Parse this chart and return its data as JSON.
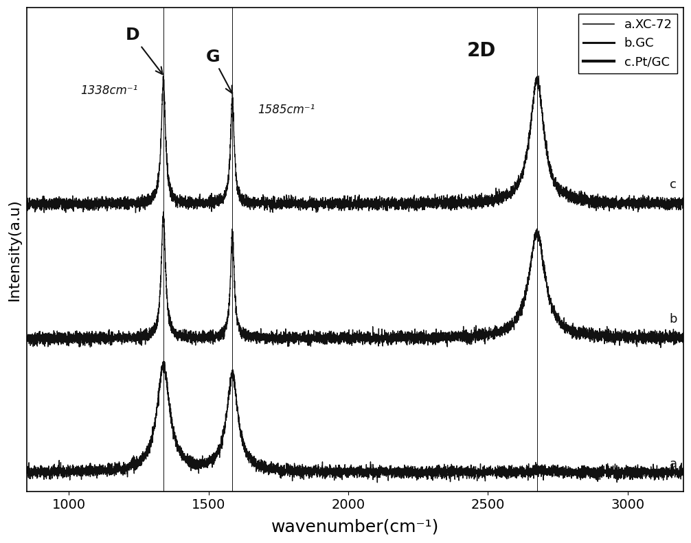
{
  "x_min": 850,
  "x_max": 3200,
  "xlabel": "wavenumber(cm⁻¹)",
  "ylabel": "Intensity(a.u)",
  "legend_labels": [
    "a.XC-72",
    "b.GC",
    "c.Pt/GC"
  ],
  "line_color": "#111111",
  "background_color": "#ffffff",
  "vertical_lines": [
    1338,
    1585,
    2676
  ],
  "d_peak": 1338,
  "g_peak": 1585,
  "2d_peak": 2676,
  "d_label": "D",
  "g_label": "G",
  "2d_label": "2D",
  "d_annotation": "1338cm⁻¹",
  "g_annotation": "1585cm⁻¹",
  "offsets": [
    0.0,
    0.28,
    0.56
  ],
  "peak_heights_a": {
    "d": 0.22,
    "g": 0.2,
    "2d": 0.003
  },
  "peak_heights_b": {
    "d": 0.26,
    "g": 0.22,
    "2d": 0.22
  },
  "peak_heights_c": {
    "d": 0.26,
    "g": 0.22,
    "2d": 0.26
  },
  "peak_widths_a": {
    "d": 28,
    "g": 25,
    "2d": 60
  },
  "peak_widths_b": {
    "d": 9,
    "g": 8,
    "2d": 35
  },
  "peak_widths_c": {
    "d": 9,
    "g": 8,
    "2d": 30
  },
  "noise_level": 0.006,
  "line_width": 1.0,
  "font_size_labels": 16,
  "font_size_ticks": 14,
  "font_size_legend": 13,
  "font_size_annotations": 12,
  "font_size_peak_labels": 18
}
